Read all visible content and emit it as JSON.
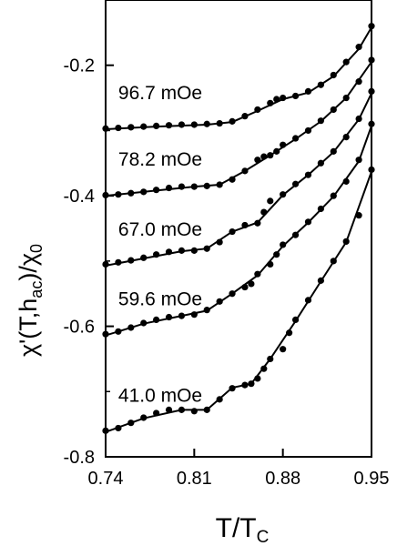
{
  "chart_data": {
    "type": "scatter",
    "xlabel": "T/T",
    "xlabel_sub": "C",
    "ylabel_parts": [
      "χ'(T,h",
      "ac",
      ")/χ",
      "0"
    ],
    "xlim": [
      0.74,
      0.95
    ],
    "ylim": [
      -0.8,
      -0.1
    ],
    "xticks": [
      0.74,
      0.81,
      0.88,
      0.95
    ],
    "xtick_labels": [
      "0.74",
      "0.81",
      "0.88",
      "0.95"
    ],
    "yticks": [
      -0.8,
      -0.6,
      -0.4,
      -0.2
    ],
    "ytick_labels": [
      "-0.8",
      "-0.6",
      "-0.4",
      "-0.2"
    ],
    "yminor": [
      -0.7,
      -0.5,
      -0.3
    ],
    "marker_color": "#000000",
    "line_color": "#000000",
    "series": [
      {
        "label": "96.7 mOe",
        "points": [
          [
            0.74,
            -0.297
          ],
          [
            0.75,
            -0.296
          ],
          [
            0.76,
            -0.295
          ],
          [
            0.77,
            -0.294
          ],
          [
            0.78,
            -0.293
          ],
          [
            0.79,
            -0.292
          ],
          [
            0.8,
            -0.291
          ],
          [
            0.81,
            -0.291
          ],
          [
            0.82,
            -0.29
          ],
          [
            0.83,
            -0.289
          ],
          [
            0.84,
            -0.286
          ],
          [
            0.85,
            -0.278
          ],
          [
            0.86,
            -0.268
          ],
          [
            0.87,
            -0.258
          ],
          [
            0.875,
            -0.252
          ],
          [
            0.88,
            -0.25
          ],
          [
            0.89,
            -0.247
          ],
          [
            0.9,
            -0.24
          ],
          [
            0.91,
            -0.23
          ],
          [
            0.92,
            -0.215
          ],
          [
            0.93,
            -0.195
          ],
          [
            0.94,
            -0.172
          ],
          [
            0.95,
            -0.14
          ]
        ],
        "curve": [
          [
            0.74,
            -0.298
          ],
          [
            0.78,
            -0.294
          ],
          [
            0.82,
            -0.291
          ],
          [
            0.84,
            -0.287
          ],
          [
            0.86,
            -0.27
          ],
          [
            0.88,
            -0.252
          ],
          [
            0.9,
            -0.242
          ],
          [
            0.92,
            -0.217
          ],
          [
            0.94,
            -0.175
          ],
          [
            0.95,
            -0.142
          ]
        ]
      },
      {
        "label": "78.2 mOe",
        "points": [
          [
            0.74,
            -0.399
          ],
          [
            0.75,
            -0.398
          ],
          [
            0.76,
            -0.396
          ],
          [
            0.77,
            -0.394
          ],
          [
            0.78,
            -0.391
          ],
          [
            0.79,
            -0.388
          ],
          [
            0.8,
            -0.386
          ],
          [
            0.81,
            -0.386
          ],
          [
            0.82,
            -0.385
          ],
          [
            0.83,
            -0.383
          ],
          [
            0.84,
            -0.375
          ],
          [
            0.85,
            -0.362
          ],
          [
            0.86,
            -0.345
          ],
          [
            0.865,
            -0.34
          ],
          [
            0.87,
            -0.338
          ],
          [
            0.875,
            -0.332
          ],
          [
            0.88,
            -0.322
          ],
          [
            0.89,
            -0.312
          ],
          [
            0.9,
            -0.3
          ],
          [
            0.91,
            -0.285
          ],
          [
            0.92,
            -0.268
          ],
          [
            0.93,
            -0.25
          ],
          [
            0.94,
            -0.225
          ],
          [
            0.95,
            -0.192
          ]
        ],
        "curve": [
          [
            0.74,
            -0.4
          ],
          [
            0.78,
            -0.392
          ],
          [
            0.81,
            -0.386
          ],
          [
            0.83,
            -0.383
          ],
          [
            0.85,
            -0.362
          ],
          [
            0.87,
            -0.338
          ],
          [
            0.89,
            -0.313
          ],
          [
            0.91,
            -0.286
          ],
          [
            0.93,
            -0.25
          ],
          [
            0.95,
            -0.195
          ]
        ]
      },
      {
        "label": "67.0 mOe",
        "points": [
          [
            0.74,
            -0.505
          ],
          [
            0.75,
            -0.502
          ],
          [
            0.76,
            -0.499
          ],
          [
            0.77,
            -0.495
          ],
          [
            0.78,
            -0.49
          ],
          [
            0.79,
            -0.486
          ],
          [
            0.8,
            -0.484
          ],
          [
            0.81,
            -0.484
          ],
          [
            0.82,
            -0.481
          ],
          [
            0.83,
            -0.471
          ],
          [
            0.84,
            -0.455
          ],
          [
            0.85,
            -0.445
          ],
          [
            0.86,
            -0.442
          ],
          [
            0.865,
            -0.425
          ],
          [
            0.87,
            -0.408
          ],
          [
            0.88,
            -0.398
          ],
          [
            0.89,
            -0.382
          ],
          [
            0.9,
            -0.368
          ],
          [
            0.91,
            -0.35
          ],
          [
            0.92,
            -0.332
          ],
          [
            0.93,
            -0.31
          ],
          [
            0.94,
            -0.282
          ],
          [
            0.95,
            -0.24
          ]
        ],
        "curve": [
          [
            0.74,
            -0.507
          ],
          [
            0.77,
            -0.496
          ],
          [
            0.8,
            -0.485
          ],
          [
            0.82,
            -0.481
          ],
          [
            0.84,
            -0.455
          ],
          [
            0.86,
            -0.441
          ],
          [
            0.88,
            -0.399
          ],
          [
            0.9,
            -0.368
          ],
          [
            0.92,
            -0.333
          ],
          [
            0.94,
            -0.283
          ],
          [
            0.95,
            -0.243
          ]
        ]
      },
      {
        "label": "59.6 mOe",
        "points": [
          [
            0.74,
            -0.612
          ],
          [
            0.75,
            -0.608
          ],
          [
            0.76,
            -0.602
          ],
          [
            0.77,
            -0.595
          ],
          [
            0.78,
            -0.59
          ],
          [
            0.79,
            -0.586
          ],
          [
            0.8,
            -0.584
          ],
          [
            0.81,
            -0.582
          ],
          [
            0.82,
            -0.575
          ],
          [
            0.83,
            -0.562
          ],
          [
            0.84,
            -0.55
          ],
          [
            0.85,
            -0.54
          ],
          [
            0.855,
            -0.535
          ],
          [
            0.86,
            -0.52
          ],
          [
            0.87,
            -0.505
          ],
          [
            0.875,
            -0.49
          ],
          [
            0.88,
            -0.475
          ],
          [
            0.89,
            -0.46
          ],
          [
            0.9,
            -0.44
          ],
          [
            0.91,
            -0.42
          ],
          [
            0.92,
            -0.4
          ],
          [
            0.93,
            -0.378
          ],
          [
            0.94,
            -0.345
          ],
          [
            0.95,
            -0.29
          ]
        ],
        "curve": [
          [
            0.74,
            -0.614
          ],
          [
            0.77,
            -0.596
          ],
          [
            0.8,
            -0.584
          ],
          [
            0.82,
            -0.576
          ],
          [
            0.84,
            -0.55
          ],
          [
            0.86,
            -0.522
          ],
          [
            0.88,
            -0.477
          ],
          [
            0.9,
            -0.441
          ],
          [
            0.92,
            -0.401
          ],
          [
            0.94,
            -0.347
          ],
          [
            0.95,
            -0.293
          ]
        ]
      },
      {
        "label": "41.0 mOe",
        "points": [
          [
            0.74,
            -0.76
          ],
          [
            0.75,
            -0.756
          ],
          [
            0.76,
            -0.748
          ],
          [
            0.77,
            -0.74
          ],
          [
            0.78,
            -0.733
          ],
          [
            0.79,
            -0.728
          ],
          [
            0.8,
            -0.728
          ],
          [
            0.81,
            -0.73
          ],
          [
            0.82,
            -0.728
          ],
          [
            0.83,
            -0.712
          ],
          [
            0.84,
            -0.695
          ],
          [
            0.85,
            -0.69
          ],
          [
            0.855,
            -0.688
          ],
          [
            0.86,
            -0.68
          ],
          [
            0.865,
            -0.665
          ],
          [
            0.87,
            -0.65
          ],
          [
            0.88,
            -0.635
          ],
          [
            0.885,
            -0.61
          ],
          [
            0.89,
            -0.59
          ],
          [
            0.9,
            -0.56
          ],
          [
            0.91,
            -0.53
          ],
          [
            0.92,
            -0.5
          ],
          [
            0.93,
            -0.47
          ],
          [
            0.94,
            -0.43
          ],
          [
            0.95,
            -0.36
          ]
        ],
        "curve": [
          [
            0.74,
            -0.762
          ],
          [
            0.77,
            -0.741
          ],
          [
            0.8,
            -0.728
          ],
          [
            0.82,
            -0.728
          ],
          [
            0.84,
            -0.694
          ],
          [
            0.855,
            -0.688
          ],
          [
            0.87,
            -0.65
          ],
          [
            0.89,
            -0.592
          ],
          [
            0.91,
            -0.531
          ],
          [
            0.93,
            -0.471
          ],
          [
            0.95,
            -0.363
          ]
        ]
      }
    ]
  }
}
